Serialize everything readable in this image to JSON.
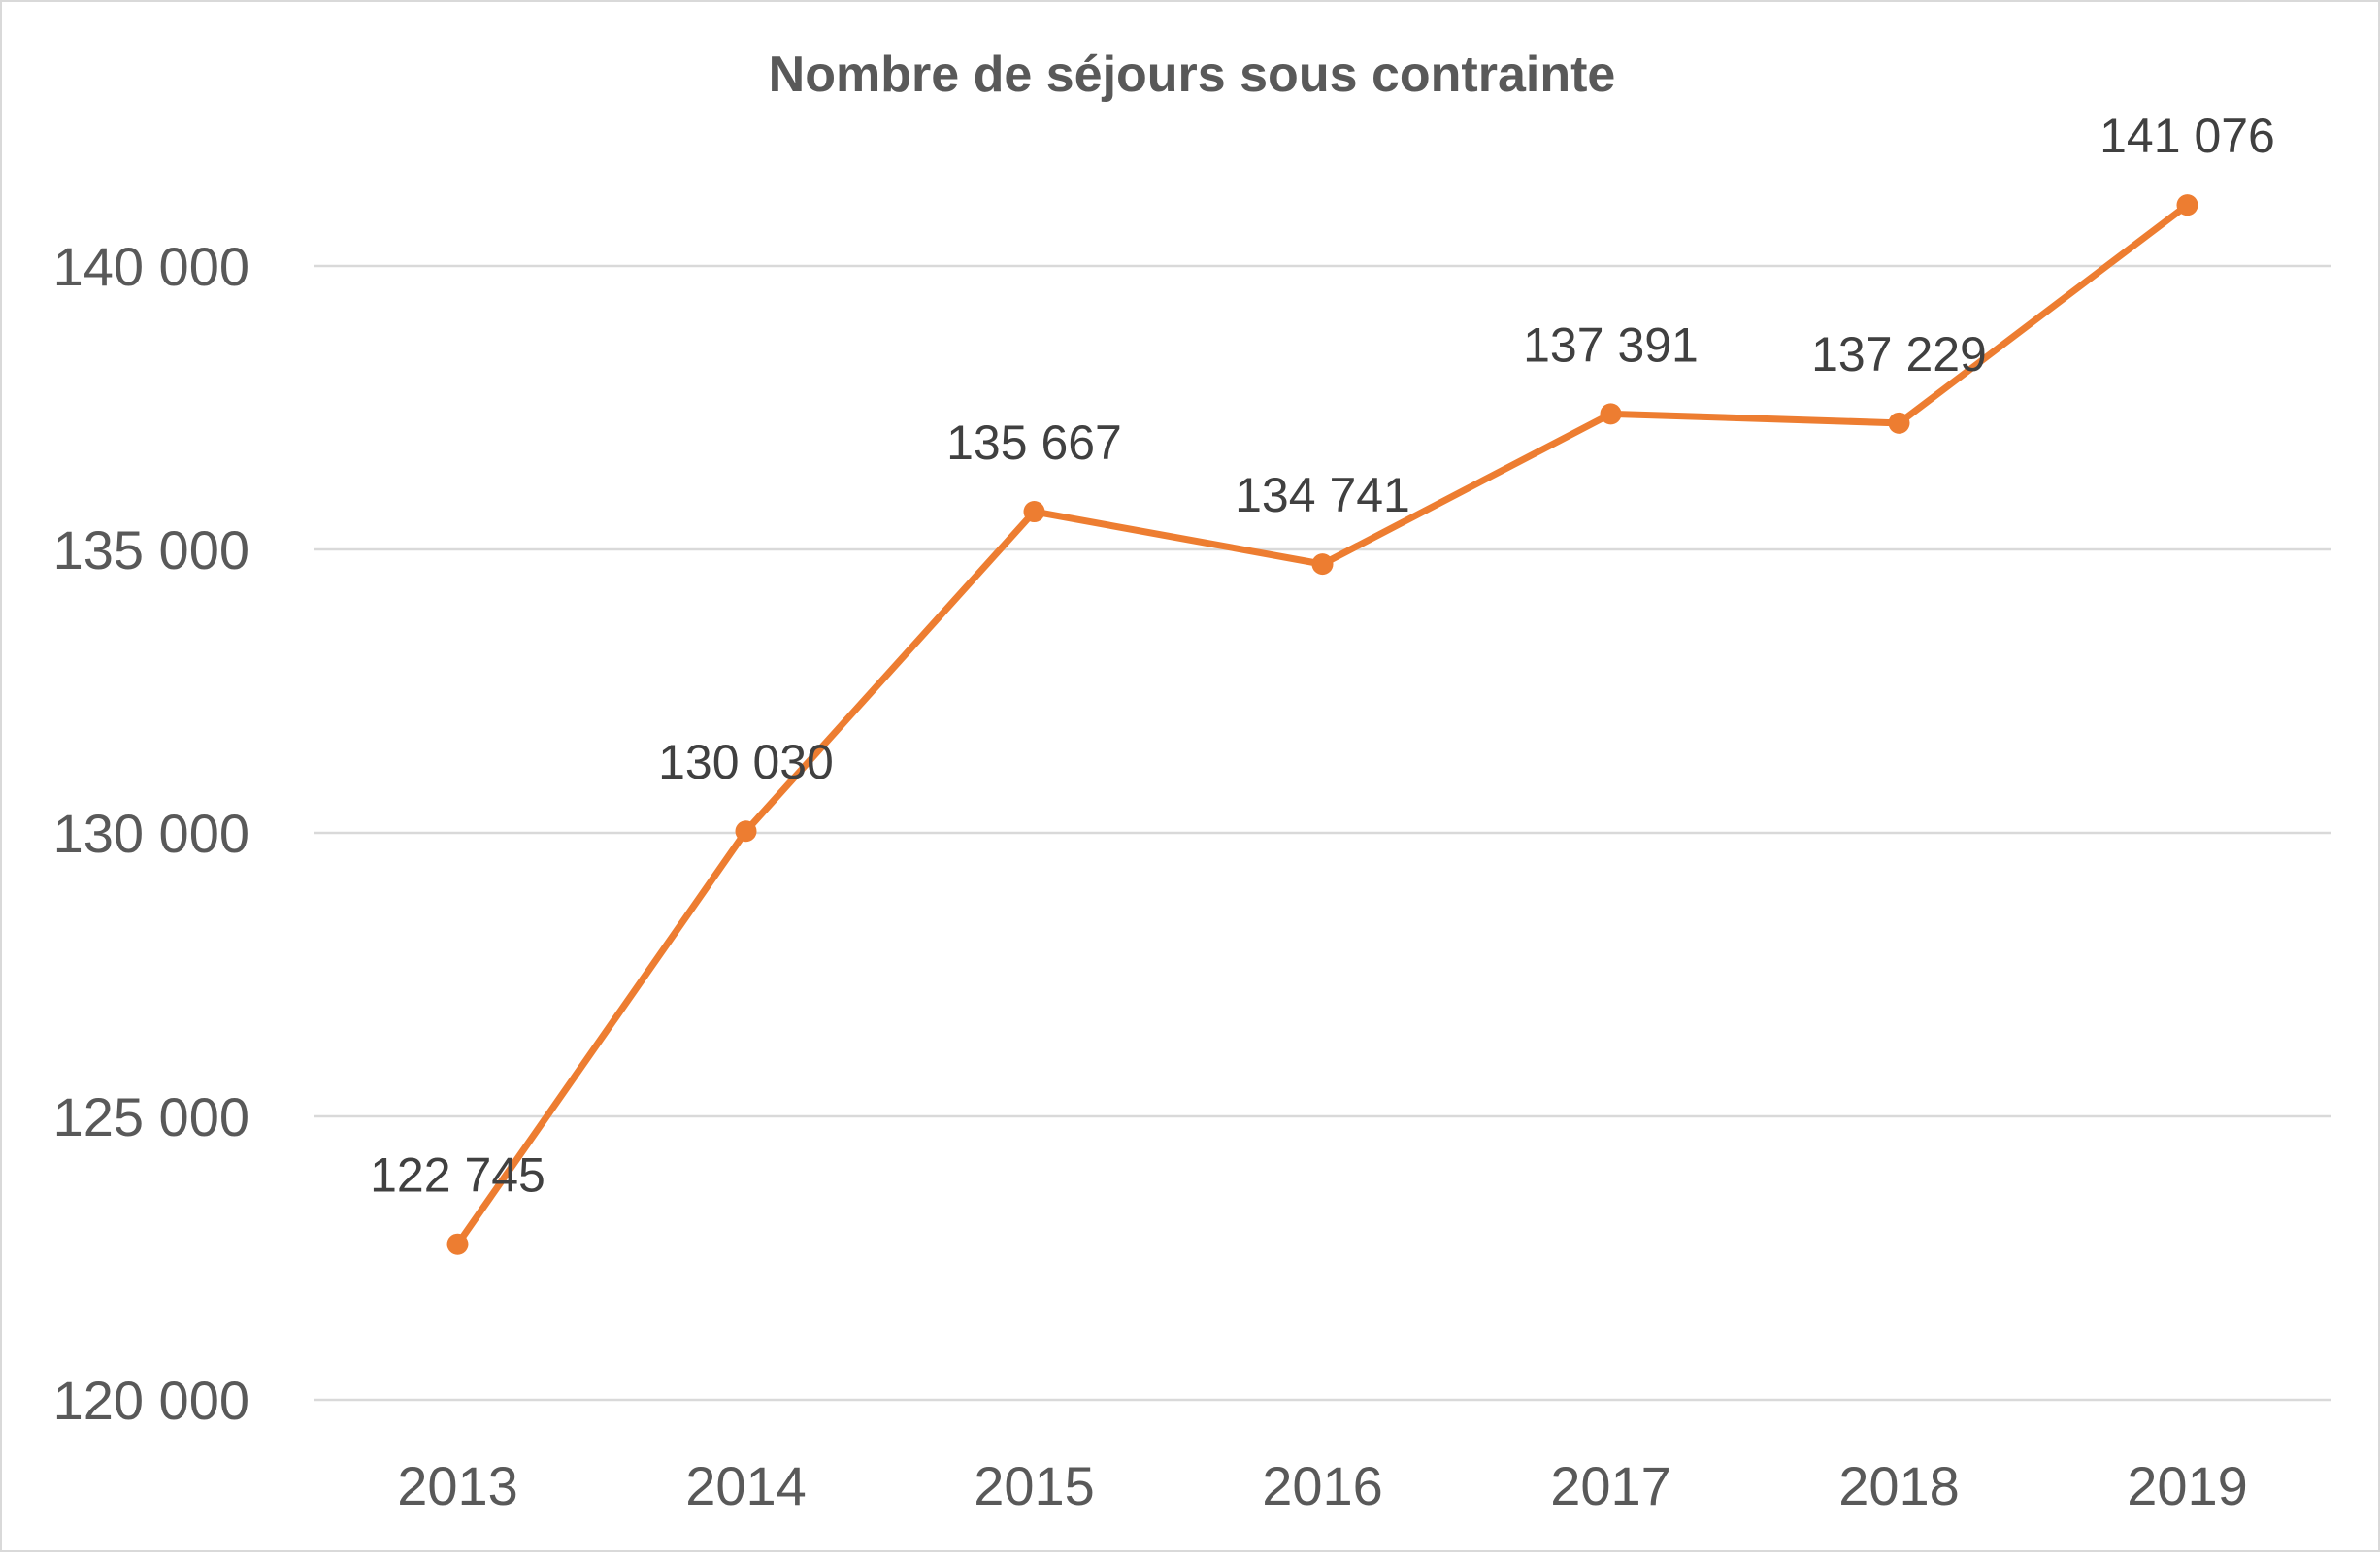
{
  "chart_data": {
    "type": "line",
    "title": "Nombre de séjours sous contrainte",
    "xlabel": "",
    "ylabel": "",
    "categories": [
      "2013",
      "2014",
      "2015",
      "2016",
      "2017",
      "2018",
      "2019"
    ],
    "series": [
      {
        "name": "Nombre de séjours sous contrainte",
        "values": [
          122745,
          130030,
          135667,
          134741,
          137391,
          137229,
          141076
        ],
        "labels": [
          "122 745",
          "130 030",
          "135 667",
          "134 741",
          "137 391",
          "137 229",
          "141 076"
        ]
      }
    ],
    "ylim": [
      120000,
      140000
    ],
    "yticks": [
      120000,
      125000,
      130000,
      135000,
      140000
    ],
    "ytick_labels": [
      "120 000",
      "125 000",
      "130 000",
      "135 000",
      "140 000"
    ],
    "grid": true,
    "legend": "none",
    "colors": {
      "line": "#ED7D31",
      "grid": "#D9D9D9",
      "text": "#595959",
      "label": "#404040"
    }
  }
}
